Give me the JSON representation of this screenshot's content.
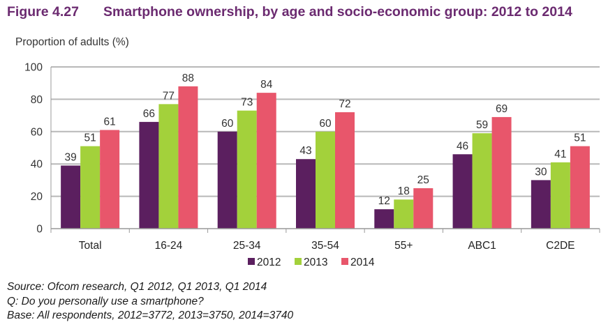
{
  "header": {
    "figure_number": "Figure 4.27",
    "title_text": "Smartphone ownership, by age and socio-economic group: 2012 to 2014"
  },
  "notes": {
    "source": "Source: Ofcom research, Q1 2012, Q1 2013, Q1 2014",
    "question": "Q: Do you personally use a smartphone?",
    "base": "Base: All respondents, 2012=3772, 2013=3750, 2014=3740"
  },
  "chart_data": {
    "type": "bar",
    "title": "Smartphone ownership, by age and socio-economic group: 2012 to 2014",
    "xlabel": "",
    "ylabel": "Proportion of adults (%)",
    "ylim": [
      0,
      100
    ],
    "yticks": [
      0,
      20,
      40,
      60,
      80,
      100
    ],
    "grid": true,
    "legend_position": "bottom",
    "categories": [
      "Total",
      "16-24",
      "25-34",
      "35-54",
      "55+",
      "ABC1",
      "C2DE"
    ],
    "series": [
      {
        "name": "2012",
        "color": "#5b1f5f",
        "values": [
          39,
          66,
          60,
          43,
          12,
          46,
          30
        ]
      },
      {
        "name": "2013",
        "color": "#a3d13b",
        "values": [
          51,
          77,
          73,
          60,
          18,
          59,
          41
        ]
      },
      {
        "name": "2014",
        "color": "#e8566b",
        "values": [
          61,
          88,
          84,
          72,
          25,
          69,
          51
        ]
      }
    ]
  }
}
